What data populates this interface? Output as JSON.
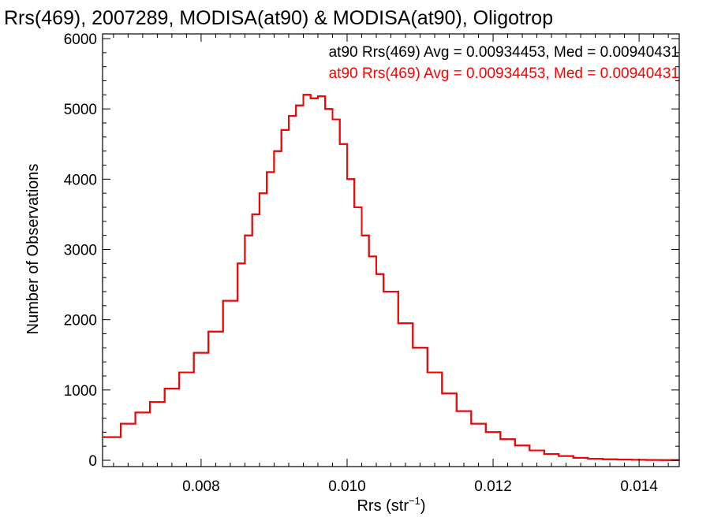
{
  "colors": {
    "series1": "#000000",
    "series2": "#ff0000",
    "axes": "#000000"
  },
  "chart_data": {
    "type": "line",
    "title": "Rrs(469), 2007289, MODISA(at90) & MODISA(at90), Oligotrop",
    "xlabel": "Rrs (str",
    "xlabel_sup": "−1",
    "xlabel_end": ")",
    "ylabel": "Number of Observations",
    "xlim": [
      0.00665,
      0.01455
    ],
    "ylim": [
      0,
      6000
    ],
    "xticks": [
      0.008,
      0.01,
      0.012,
      0.014
    ],
    "xtick_labels": [
      "0.008",
      "0.010",
      "0.012",
      "0.014"
    ],
    "yticks": [
      0,
      1000,
      2000,
      3000,
      4000,
      5000,
      6000
    ],
    "ytick_labels": [
      "0",
      "1000",
      "2000",
      "3000",
      "4000",
      "5000",
      "6000"
    ],
    "grid": false,
    "legend_position": "top-right",
    "legend": [
      "at90 Rrs(469) Avg = 0.00934453, Med = 0.00940431",
      "at90 Rrs(469) Avg = 0.00934453, Med = 0.00940431"
    ],
    "x": [
      0.00665,
      0.0069,
      0.0071,
      0.0073,
      0.0075,
      0.0077,
      0.0079,
      0.0081,
      0.0083,
      0.0085,
      0.0086,
      0.0087,
      0.0088,
      0.0089,
      0.009,
      0.0091,
      0.0092,
      0.0093,
      0.0094,
      0.0095,
      0.0096,
      0.0097,
      0.0098,
      0.0099,
      0.01,
      0.0101,
      0.0102,
      0.0103,
      0.0104,
      0.0105,
      0.0107,
      0.0109,
      0.0111,
      0.0113,
      0.0115,
      0.0117,
      0.0119,
      0.0121,
      0.0123,
      0.0125,
      0.0127,
      0.0129,
      0.0131,
      0.0133,
      0.0135,
      0.0137,
      0.0139,
      0.0141,
      0.0143,
      0.01455
    ],
    "series": [
      {
        "name": "at90 Rrs(469) Avg = 0.00934453, Med = 0.00940431",
        "color": "#000000",
        "values": [
          330,
          520,
          680,
          830,
          1020,
          1250,
          1530,
          1830,
          2270,
          2800,
          3200,
          3500,
          3800,
          4100,
          4400,
          4700,
          4900,
          5050,
          5200,
          5150,
          5180,
          5000,
          4850,
          4500,
          4000,
          3600,
          3200,
          2900,
          2650,
          2400,
          1950,
          1600,
          1250,
          950,
          700,
          520,
          400,
          300,
          210,
          140,
          90,
          60,
          35,
          22,
          15,
          10,
          7,
          5,
          3,
          2
        ]
      },
      {
        "name": "at90 Rrs(469) Avg = 0.00934453, Med = 0.00940431",
        "color": "#ff0000",
        "values": [
          330,
          520,
          680,
          830,
          1020,
          1250,
          1530,
          1830,
          2270,
          2800,
          3200,
          3500,
          3800,
          4100,
          4400,
          4700,
          4900,
          5050,
          5200,
          5150,
          5180,
          5000,
          4850,
          4500,
          4000,
          3600,
          3200,
          2900,
          2650,
          2400,
          1950,
          1600,
          1250,
          950,
          700,
          520,
          400,
          300,
          210,
          140,
          90,
          60,
          35,
          22,
          15,
          10,
          7,
          5,
          3,
          2
        ]
      }
    ]
  }
}
